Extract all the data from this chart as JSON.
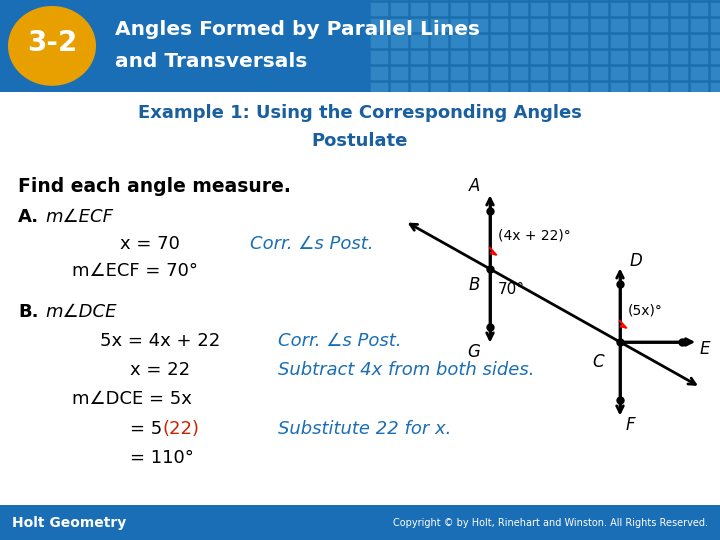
{
  "title_badge": "3-2",
  "title_line1": "Angles Formed by Parallel Lines",
  "title_line2": "and Transversals",
  "subtitle_line1": "Example 1: Using the Corresponding Angles",
  "subtitle_line2": "Postulate",
  "header_bg": "#1a6eb5",
  "tile_color": "#3a8fcc",
  "tile_edge": "#2070a0",
  "badge_color": "#e8a000",
  "badge_text_color": "#ffffff",
  "white_bg": "#ffffff",
  "footer_bg": "#1a6eb5",
  "footer_left": "Holt Geometry",
  "footer_right": "Copyright © by Holt, Rinehart and Winston. All Rights Reserved.",
  "subtitle_color": "#1a5fa0",
  "blue_text_color": "#1a6eb5",
  "red_text_color": "#cc2200"
}
